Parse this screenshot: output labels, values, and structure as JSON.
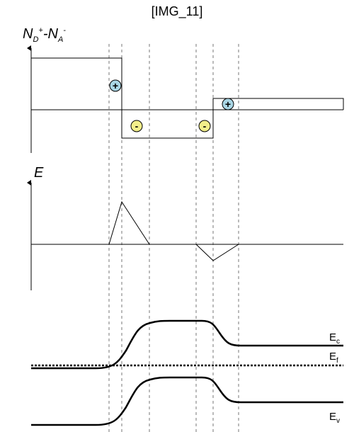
{
  "title": "[IMG_11]",
  "panel_top": {
    "ylabel_main": "N",
    "ylabel_sub_d": "D",
    "ylabel_sup_plus": "+",
    "ylabel_dash": "-N",
    "ylabel_sub_a": "A",
    "ylabel_sup_minus": "-"
  },
  "charges": {
    "positive": "+",
    "negative": "-"
  },
  "panel_middle": {
    "ylabel": "E"
  },
  "panel_bottom": {
    "ec_main": "E",
    "ec_sub": "c",
    "ef_main": "E",
    "ef_sub": "f",
    "ev_main": "E",
    "ev_sub": "v"
  },
  "colors": {
    "positive_fill": "#a9d6e5",
    "negative_fill": "#f2ee8a",
    "line": "#000000",
    "guide": "#777777"
  }
}
